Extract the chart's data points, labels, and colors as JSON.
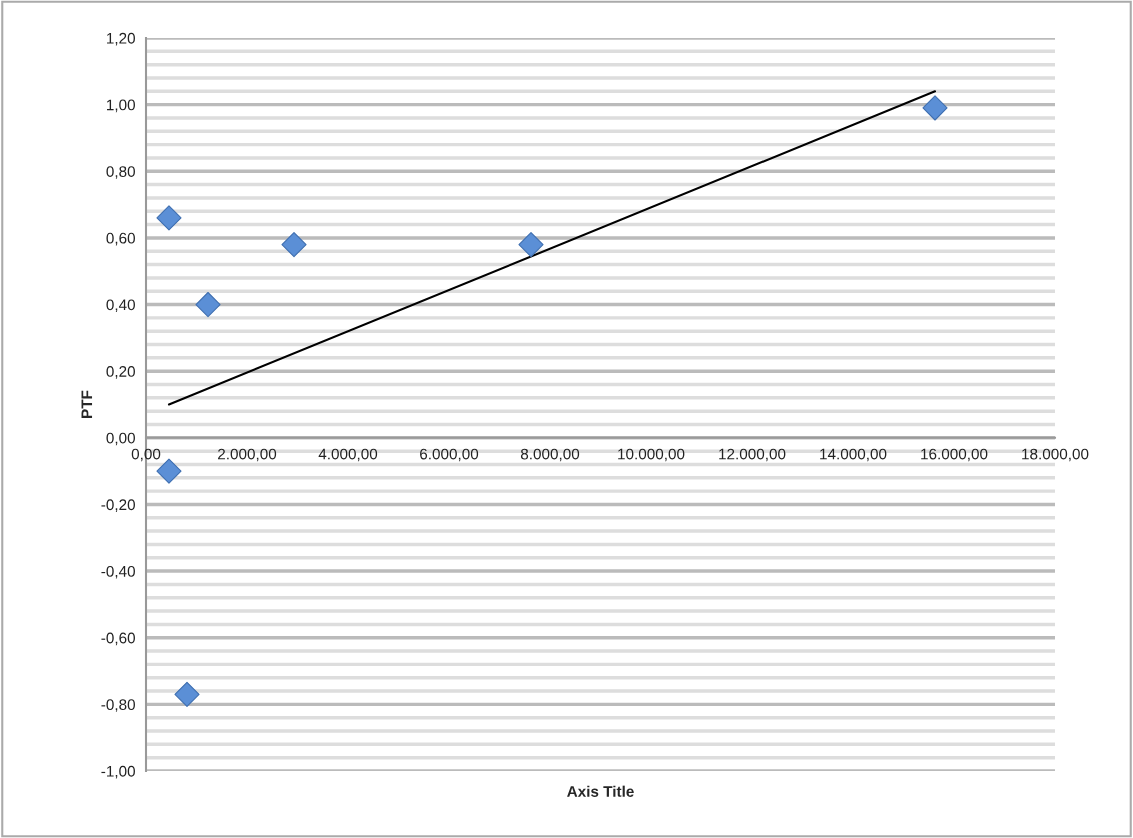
{
  "chart_data": {
    "type": "scatter",
    "xlabel": "Axis Title",
    "ylabel": "PTF",
    "series": [
      {
        "color": "#5b8fd6",
        "marker": "diamond",
        "x": [
          455,
          1228,
          2931,
          7624,
          15624,
          455,
          812
        ],
        "values": [
          0.66,
          0.4,
          0.58,
          0.58,
          0.99,
          -0.1,
          -0.77
        ]
      },
      {
        "type": "line",
        "color": "#000000",
        "marker": "none",
        "line_style": "solid",
        "x": [
          455,
          15624
        ],
        "values": [
          0.1,
          1.04
        ]
      }
    ],
    "xlim": [
      0,
      18000
    ],
    "ylim": [
      -1.0,
      1.2
    ],
    "xticks": [
      {
        "value": 0,
        "label": "0,00"
      },
      {
        "value": 2000,
        "label": "2.000,00"
      },
      {
        "value": 4000,
        "label": "4.000,00"
      },
      {
        "value": 6000,
        "label": "6.000,00"
      },
      {
        "value": 8000,
        "label": "8.000,00"
      },
      {
        "value": 10000,
        "label": "10.000,00"
      },
      {
        "value": 12000,
        "label": "12.000,00"
      },
      {
        "value": 14000,
        "label": "14.000,00"
      },
      {
        "value": 16000,
        "label": "16.000,00"
      },
      {
        "value": 18000,
        "label": "18.000,00"
      }
    ],
    "yticks": [
      {
        "value": -1.0,
        "label": "-1,00"
      },
      {
        "value": -0.8,
        "label": "-0,80"
      },
      {
        "value": -0.6,
        "label": "-0,60"
      },
      {
        "value": -0.4,
        "label": "-0,40"
      },
      {
        "value": -0.2,
        "label": "-0,20"
      },
      {
        "value": 0.0,
        "label": "0,00"
      },
      {
        "value": 0.2,
        "label": "0,20"
      },
      {
        "value": 0.4,
        "label": "0,40"
      },
      {
        "value": 0.6,
        "label": "0,60"
      },
      {
        "value": 0.8,
        "label": "0,80"
      },
      {
        "value": 1.0,
        "label": "1,00"
      },
      {
        "value": 1.2,
        "label": "1,20"
      }
    ],
    "grid": "y",
    "legend": false
  }
}
